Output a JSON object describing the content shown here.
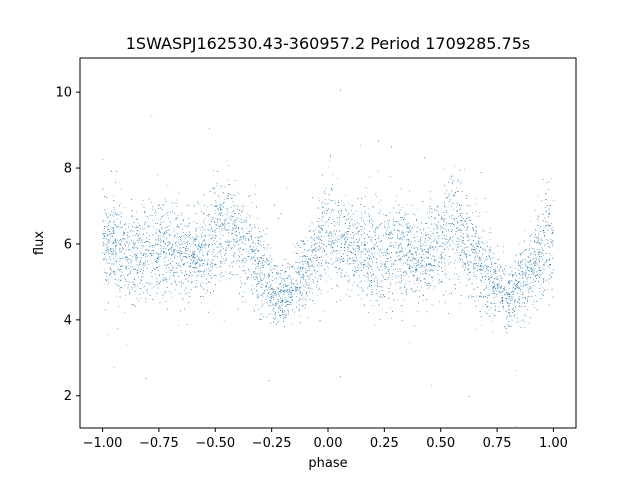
{
  "chart_data": {
    "type": "scatter",
    "title": "1SWASPJ162530.43-360957.2 Period 1709285.75s",
    "xlabel": "phase",
    "ylabel": "flux",
    "xlim": [
      -1.1,
      1.1
    ],
    "ylim": [
      1.15,
      10.9
    ],
    "x_ticks": [
      -1.0,
      -0.75,
      -0.5,
      -0.25,
      0.0,
      0.25,
      0.5,
      0.75,
      1.0
    ],
    "x_tick_labels": [
      "−1.00",
      "−0.75",
      "−0.50",
      "−0.25",
      "0.00",
      "0.25",
      "0.50",
      "0.75",
      "1.00"
    ],
    "y_ticks": [
      2,
      4,
      6,
      8,
      10
    ],
    "y_tick_labels": [
      "2",
      "4",
      "6",
      "8",
      "10"
    ],
    "grid": false,
    "legend": "none",
    "color": "#1f77b4",
    "series": [
      {
        "x": [
          -1.0,
          -0.95,
          -0.9,
          -0.85,
          -0.8,
          -0.75,
          -0.7,
          -0.65,
          -0.6,
          -0.55,
          -0.5,
          -0.45,
          -0.4,
          -0.35,
          -0.3,
          -0.25,
          -0.2,
          -0.15,
          -0.1,
          -0.05,
          0.0,
          0.05,
          0.1,
          0.15,
          0.2,
          0.25,
          0.3,
          0.35,
          0.4,
          0.45,
          0.5,
          0.55,
          0.6,
          0.65,
          0.7,
          0.75,
          0.8,
          0.85,
          0.9,
          0.95,
          1.0
        ],
        "y": [
          6.2,
          6.0,
          5.8,
          5.6,
          5.7,
          5.9,
          6.0,
          5.8,
          5.6,
          5.8,
          6.2,
          6.4,
          6.1,
          5.8,
          5.2,
          4.8,
          4.5,
          4.9,
          5.3,
          5.8,
          6.4,
          6.1,
          5.9,
          5.7,
          5.6,
          5.8,
          6.0,
          5.8,
          5.6,
          5.8,
          6.1,
          6.4,
          6.1,
          5.8,
          5.2,
          4.9,
          4.6,
          4.9,
          5.3,
          5.8,
          6.2
        ],
        "spread": [
          1.0,
          0.9,
          0.8,
          0.8,
          0.8,
          0.9,
          0.9,
          0.8,
          0.7,
          0.8,
          0.9,
          1.0,
          1.0,
          0.9,
          0.8,
          0.6,
          0.5,
          0.6,
          0.7,
          0.9,
          1.1,
          0.9,
          0.8,
          0.8,
          0.8,
          0.9,
          0.9,
          0.8,
          0.7,
          0.8,
          0.9,
          1.0,
          1.0,
          0.9,
          0.8,
          0.6,
          0.5,
          0.6,
          0.7,
          0.9,
          1.0
        ]
      }
    ],
    "n_points": 9000
  }
}
